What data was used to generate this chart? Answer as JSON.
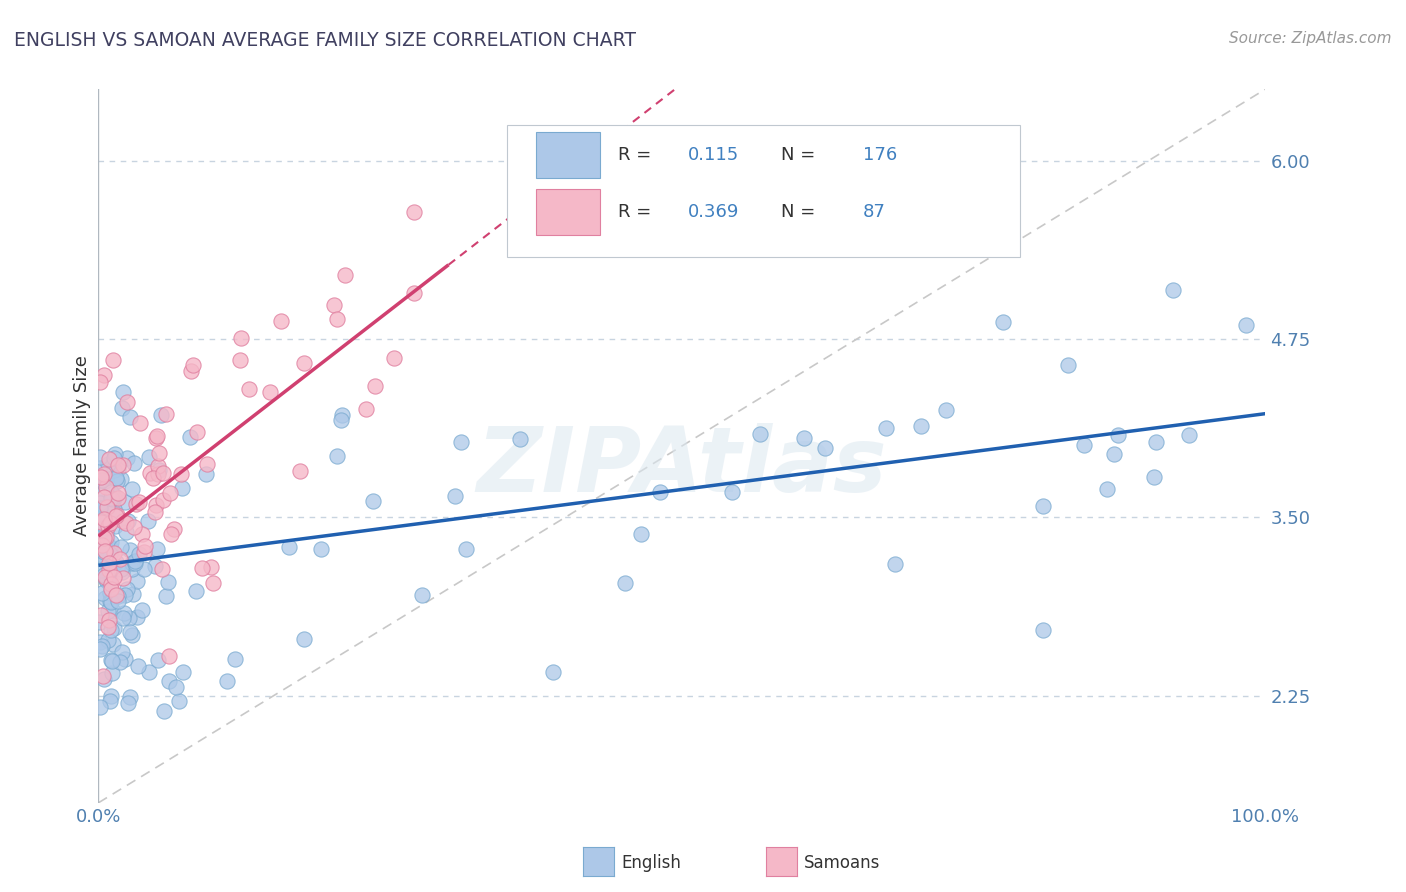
{
  "title": "ENGLISH VS SAMOAN AVERAGE FAMILY SIZE CORRELATION CHART",
  "source_text": "Source: ZipAtlas.com",
  "ylabel": "Average Family Size",
  "watermark": "ZIPAtlas",
  "xlim": [
    0,
    1
  ],
  "ylim": [
    1.5,
    6.5
  ],
  "yticks": [
    2.25,
    3.5,
    4.75,
    6.0
  ],
  "english_R": 0.115,
  "english_N": 176,
  "samoan_R": 0.369,
  "samoan_N": 87,
  "english_face_color": "#adc8e8",
  "english_edge_color": "#7aaad0",
  "samoan_face_color": "#f5b8c8",
  "samoan_edge_color": "#e080a0",
  "english_trend_color": "#2060b0",
  "samoan_trend_color": "#d04070",
  "diagonal_color": "#c8c8c8",
  "title_color": "#404060",
  "axis_tick_color": "#5080b0",
  "background_color": "#ffffff",
  "legend_r_color": "#4080c0",
  "legend_n_color": "#4080c0"
}
